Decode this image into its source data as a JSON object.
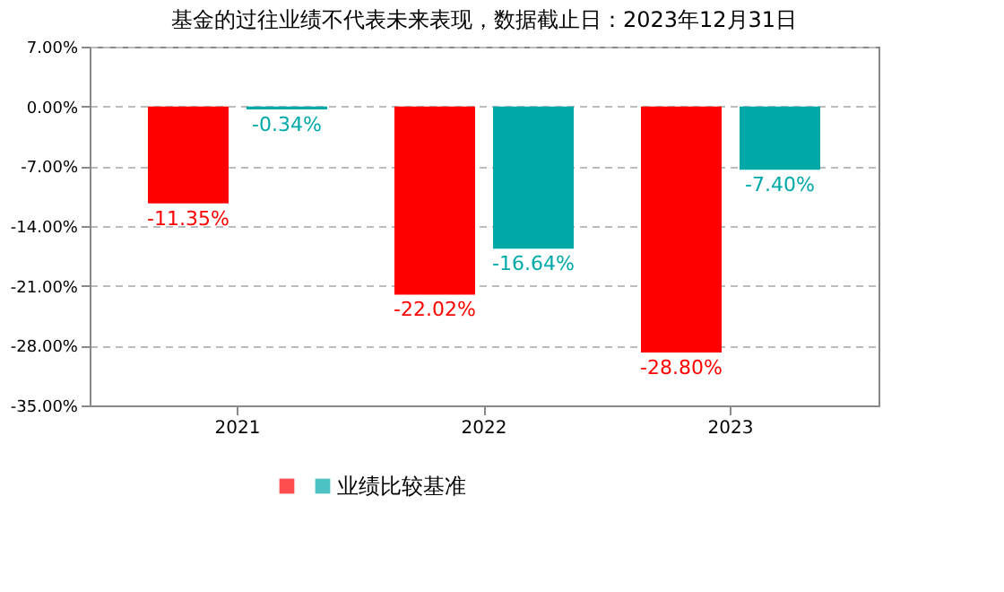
{
  "chart_data": {
    "type": "bar",
    "title": "基金的过往业绩不代表未来表现，数据截止日：2023年12月31日",
    "categories": [
      "2021",
      "2022",
      "2023"
    ],
    "series": [
      {
        "color": "#ff0000",
        "values": [
          -11.35,
          -22.02,
          -28.8
        ],
        "value_labels": [
          "-11.35%",
          "-22.02%",
          "-28.80%"
        ]
      },
      {
        "name": "业绩比较基准",
        "color": "#00a8a8",
        "values": [
          -0.34,
          -16.64,
          -7.4
        ],
        "value_labels": [
          "-0.34%",
          "-16.64%",
          "-7.40%"
        ]
      }
    ],
    "ylim": [
      -35,
      7
    ],
    "yticks": [
      {
        "value": 7,
        "label": "7.00%"
      },
      {
        "value": 0,
        "label": "0.00%"
      },
      {
        "value": -7,
        "label": "-7.00%"
      },
      {
        "value": -14,
        "label": "-14.00%"
      },
      {
        "value": -21,
        "label": "-21.00%"
      },
      {
        "value": -28,
        "label": "-28.00%"
      },
      {
        "value": -35,
        "label": "-35.00%"
      }
    ],
    "grid": "y",
    "legend": "bottom"
  }
}
